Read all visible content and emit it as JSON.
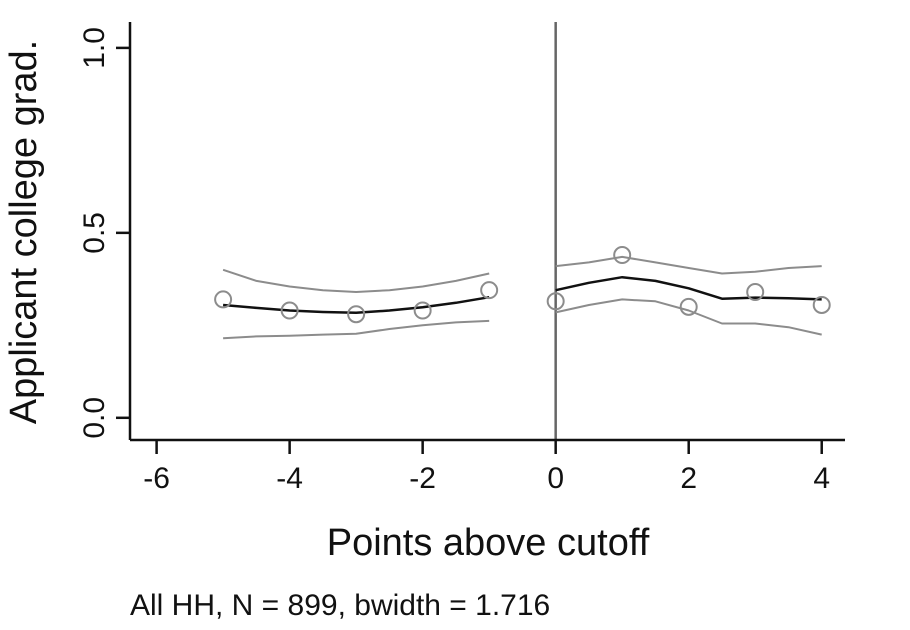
{
  "chart_data": {
    "type": "scatter",
    "title": "",
    "xlabel": "Points above cutoff",
    "ylabel": "Applicant college grad.",
    "note": "All HH, N = 899, bwidth = 1.716",
    "xlim": [
      -6.4,
      4.35
    ],
    "ylim": [
      -0.06,
      1.07
    ],
    "x_ticks": [
      -6,
      -4,
      -2,
      0,
      2,
      4
    ],
    "x_tick_labels": [
      "-6",
      "-4",
      "-2",
      "0",
      "2",
      "4"
    ],
    "y_ticks": [
      0.0,
      0.5,
      1.0
    ],
    "y_tick_labels": [
      "0.0",
      "0.5",
      "1.0"
    ],
    "cutoff_x": 0,
    "grid": false,
    "legend": "none",
    "colors": {
      "fit": "#111111",
      "ci": "#8c8c8c",
      "points": "#8c8c8c",
      "cutoff": "#666666",
      "axis": "#111111"
    },
    "series": [
      {
        "type": "scatter",
        "x": [
          -5,
          -4,
          -3,
          -2,
          -1,
          0,
          1,
          2,
          3,
          4
        ],
        "y": [
          0.32,
          0.29,
          0.28,
          0.29,
          0.345,
          0.315,
          0.44,
          0.3,
          0.34,
          0.305
        ]
      },
      {
        "type": "line",
        "role": "fit",
        "segment": "left",
        "x": [
          -5,
          -4.5,
          -4,
          -3.5,
          -3,
          -2.5,
          -2,
          -1.5,
          -1
        ],
        "y": [
          0.305,
          0.297,
          0.29,
          0.286,
          0.284,
          0.29,
          0.299,
          0.311,
          0.326
        ]
      },
      {
        "type": "line",
        "role": "ci-upper",
        "segment": "left",
        "x": [
          -5,
          -4.5,
          -4,
          -3.5,
          -3,
          -2.5,
          -2,
          -1.5,
          -1
        ],
        "y": [
          0.4,
          0.37,
          0.355,
          0.345,
          0.34,
          0.345,
          0.355,
          0.37,
          0.39
        ]
      },
      {
        "type": "line",
        "role": "ci-lower",
        "segment": "left",
        "x": [
          -5,
          -4.5,
          -4,
          -3.5,
          -3,
          -2.5,
          -2,
          -1.5,
          -1
        ],
        "y": [
          0.215,
          0.22,
          0.222,
          0.225,
          0.227,
          0.24,
          0.25,
          0.258,
          0.262
        ]
      },
      {
        "type": "line",
        "role": "fit",
        "segment": "right",
        "x": [
          0,
          0.5,
          1,
          1.5,
          2,
          2.5,
          3,
          3.5,
          4
        ],
        "y": [
          0.345,
          0.365,
          0.38,
          0.37,
          0.35,
          0.322,
          0.325,
          0.323,
          0.32
        ]
      },
      {
        "type": "line",
        "role": "ci-upper",
        "segment": "right",
        "x": [
          0,
          0.5,
          1,
          1.5,
          2,
          2.5,
          3,
          3.5,
          4
        ],
        "y": [
          0.41,
          0.42,
          0.435,
          0.42,
          0.405,
          0.39,
          0.395,
          0.405,
          0.41
        ]
      },
      {
        "type": "line",
        "role": "ci-lower",
        "segment": "right",
        "x": [
          0,
          0.5,
          1,
          1.5,
          2,
          2.5,
          3,
          3.5,
          4
        ],
        "y": [
          0.285,
          0.305,
          0.32,
          0.315,
          0.29,
          0.255,
          0.255,
          0.245,
          0.225
        ]
      }
    ]
  }
}
